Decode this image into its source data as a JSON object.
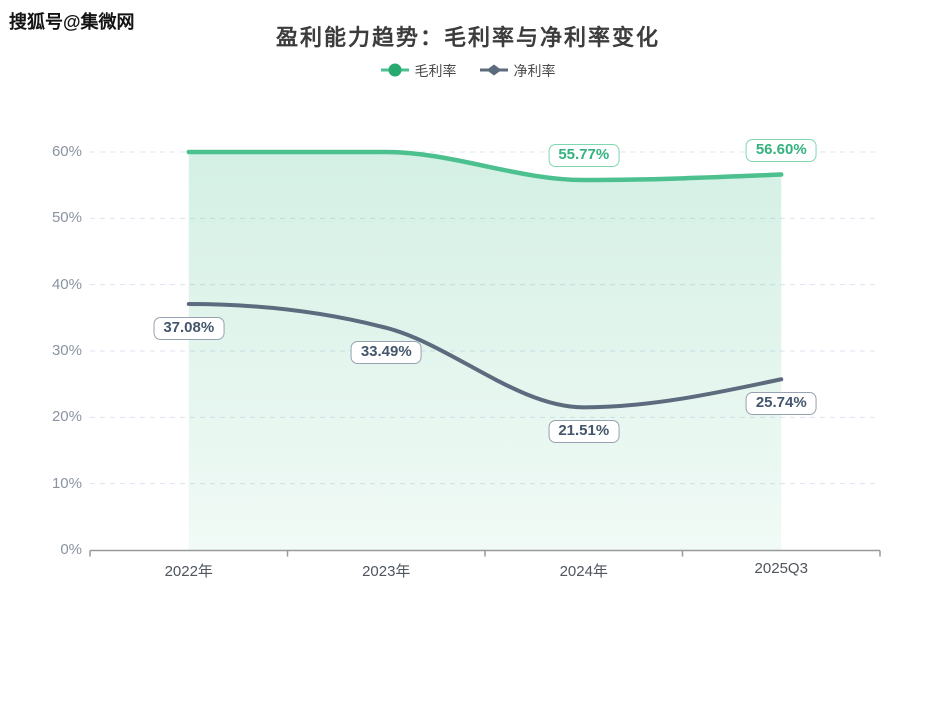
{
  "watermark": "搜狐号@集微网",
  "chart_data": {
    "type": "line",
    "title": "盈利能力趋势：毛利率与净利率变化",
    "categories": [
      "2022年",
      "2023年",
      "2024年",
      "2025Q3"
    ],
    "series": [
      {
        "key": "gross-margin",
        "name": "毛利率",
        "marker": "circle",
        "color": "#4cc08e",
        "marker_color": "#27aa70",
        "values": [
          60.0,
          60.0,
          55.77,
          56.6
        ],
        "labels": [
          null,
          null,
          "55.77%",
          "56.60%"
        ],
        "label_placement": "above",
        "label_text_color": "#33b27f",
        "label_border_color": "#7fd8af",
        "area": true
      },
      {
        "key": "net-margin",
        "name": "净利率",
        "marker": "diamond",
        "color": "#5c6b7d",
        "marker_color": "#5c6b7d",
        "values": [
          37.08,
          33.49,
          21.51,
          25.74
        ],
        "labels": [
          "37.08%",
          "33.49%",
          "21.51%",
          "25.74%"
        ],
        "label_placement": "below",
        "label_text_color": "#44566b",
        "label_border_color": "#97a2b0",
        "area": false
      }
    ],
    "ylim": [
      0,
      60
    ],
    "y_ticks": [
      "0%",
      "10%",
      "20%",
      "30%",
      "40%",
      "50%",
      "60%"
    ],
    "grid": "horizontal-dashed",
    "grid_color": "#dce3f0",
    "axis_color": "#999999",
    "legend_position": "top-center"
  }
}
